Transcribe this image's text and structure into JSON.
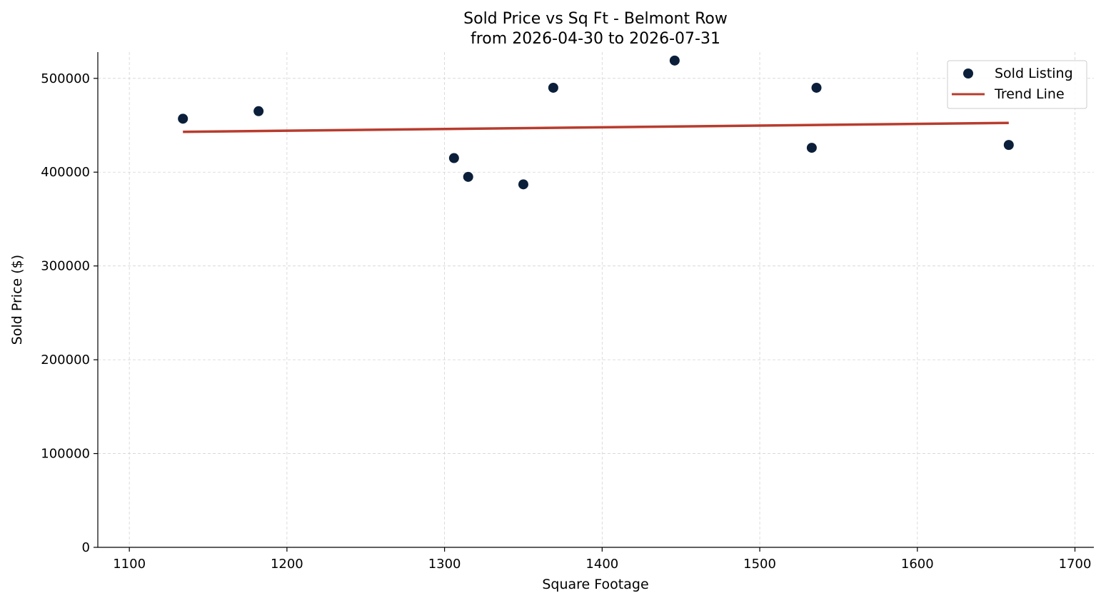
{
  "chart_data": {
    "type": "scatter",
    "title": "Sold Price vs Sq Ft - Belmont Row",
    "subtitle": "from 2026-04-30 to 2026-07-31",
    "xlabel": "Square Footage",
    "ylabel": "Sold Price ($)",
    "xlim": [
      1080,
      1712
    ],
    "ylim": [
      0,
      528000
    ],
    "x_ticks": [
      1100,
      1200,
      1300,
      1400,
      1500,
      1600,
      1700
    ],
    "y_ticks": [
      0,
      100000,
      200000,
      300000,
      400000,
      500000
    ],
    "grid": true,
    "legend_position": "top-right",
    "series": [
      {
        "name": "Sold Listing",
        "kind": "scatter",
        "color": "#0b1f3a",
        "points": [
          {
            "x": 1134,
            "y": 457000
          },
          {
            "x": 1182,
            "y": 465000
          },
          {
            "x": 1306,
            "y": 415000
          },
          {
            "x": 1315,
            "y": 395000
          },
          {
            "x": 1350,
            "y": 387000
          },
          {
            "x": 1369,
            "y": 490000
          },
          {
            "x": 1446,
            "y": 519000
          },
          {
            "x": 1533,
            "y": 426000
          },
          {
            "x": 1536,
            "y": 490000
          },
          {
            "x": 1658,
            "y": 429000
          }
        ]
      },
      {
        "name": "Trend Line",
        "kind": "line",
        "color": "#b83c2e",
        "points": [
          {
            "x": 1134,
            "y": 443000
          },
          {
            "x": 1658,
            "y": 452500
          }
        ]
      }
    ]
  }
}
